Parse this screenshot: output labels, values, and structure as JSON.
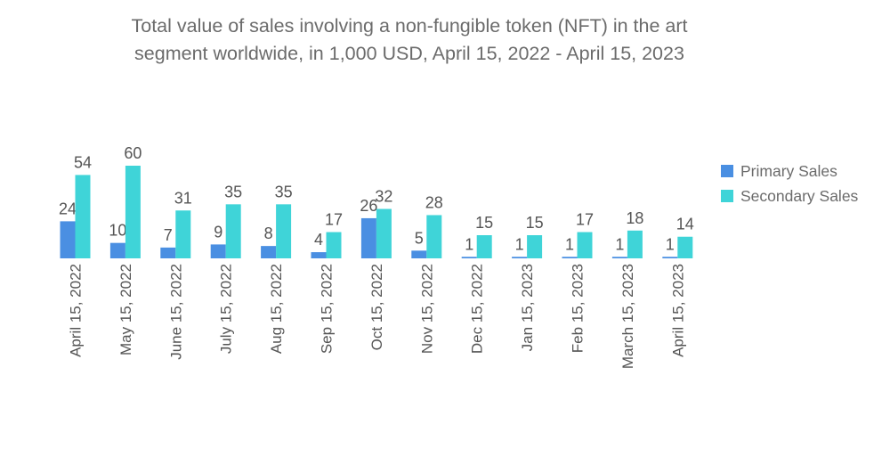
{
  "chart_data": {
    "type": "bar",
    "title_line1": "Total value of sales involving a non-fungible token (NFT) in the art",
    "title_line2": "segment worldwide, in 1,000 USD, April 15, 2022 - April 15, 2023",
    "categories": [
      "April 15, 2022",
      "May 15, 2022",
      "June 15, 2022",
      "July 15, 2022",
      "Aug 15, 2022",
      "Sep 15, 2022",
      "Oct 15, 2022",
      "Nov 15, 2022",
      "Dec 15, 2022",
      "Jan 15, 2023",
      "Feb 15, 2023",
      "March 15, 2023",
      "April 15, 2023"
    ],
    "series": [
      {
        "name": "Primary Sales",
        "color": "#4a8fe2",
        "values": [
          24,
          10,
          7,
          9,
          8,
          4,
          26,
          5,
          1,
          1,
          1,
          1,
          1
        ]
      },
      {
        "name": "Secondary Sales",
        "color": "#3fd4d8",
        "values": [
          54,
          60,
          31,
          35,
          35,
          17,
          32,
          28,
          15,
          15,
          17,
          18,
          14
        ]
      }
    ],
    "xlabel": "",
    "ylabel": "",
    "ylim": [
      0,
      60
    ],
    "grid": false,
    "legend_position": "right"
  }
}
